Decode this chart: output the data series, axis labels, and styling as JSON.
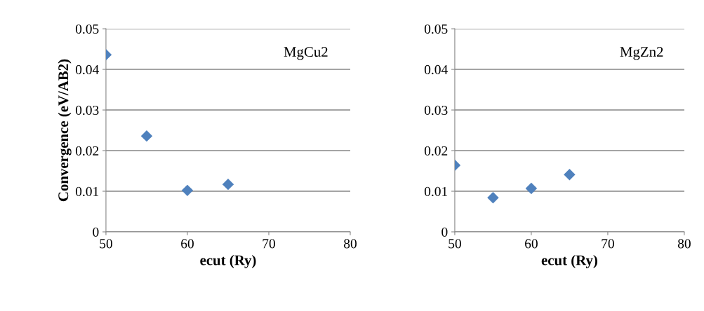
{
  "chart_data": [
    {
      "type": "scatter",
      "x": [
        50,
        55,
        60,
        65
      ],
      "values": [
        0.0436,
        0.0236,
        0.0102,
        0.0117
      ],
      "color": "#4f81bd",
      "marker": "diamond",
      "xlabel": "ecut (Ry)",
      "ylabel": "Convergence (eV/AB2)",
      "annotations": [
        "MgCu2"
      ],
      "xlim": [
        50,
        80
      ],
      "xticks": [
        50,
        60,
        70,
        80
      ],
      "ylim": [
        0,
        0.05
      ],
      "yticks": [
        0,
        0.01,
        0.02,
        0.03,
        0.04,
        0.05
      ],
      "grid": "y"
    },
    {
      "type": "scatter",
      "x": [
        50,
        55,
        60,
        65
      ],
      "values": [
        0.0164,
        0.0084,
        0.0107,
        0.0141
      ],
      "color": "#4f81bd",
      "marker": "diamond",
      "xlabel": "ecut (Ry)",
      "annotations": [
        "MgZn2"
      ],
      "xlim": [
        50,
        80
      ],
      "xticks": [
        50,
        60,
        70,
        80
      ],
      "ylim": [
        0,
        0.05
      ],
      "yticks": [
        0,
        0.01,
        0.02,
        0.03,
        0.04,
        0.05
      ],
      "grid": "y"
    }
  ]
}
